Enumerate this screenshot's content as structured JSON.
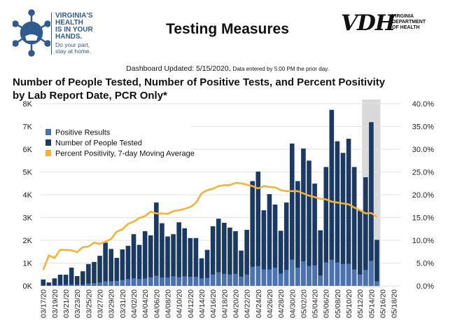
{
  "header": {
    "logo_left_lines": [
      "VIRGINIA'S",
      "HEALTH",
      "IS IN YOUR",
      "HANDS."
    ],
    "logo_left_sub": [
      "Do your part,",
      "stay at home."
    ],
    "title": "Testing Measures",
    "logo_right_mark": "VDH",
    "logo_right_sub": [
      "VIRGINIA",
      "DEPARTMENT",
      "OF HEALTH"
    ],
    "updated_label": "Dashboard Updated: 5/15/2020,",
    "updated_note": "Data entered by 5:00 PM the prior day."
  },
  "chart_data": {
    "type": "bar",
    "title": "Number of People Tested, Number of Positive Tests, and Percent Positivity by Lab Report Date, PCR Only*",
    "title_lines": [
      "Number of People Tested, Number of Positive Tests, and Percent Positivity",
      "by Lab Report Date, PCR Only*"
    ],
    "legend_position": "top-left",
    "grid": true,
    "colors": {
      "positive": "#4a72b0",
      "tested": "#1b3a63",
      "percent": "#f5b335",
      "highlight": "#d9d9d9"
    },
    "x_tick_labels": [
      "03/17/20",
      "03/19/20",
      "03/21/20",
      "03/23/20",
      "03/25/20",
      "03/27/20",
      "03/29/20",
      "03/31/20",
      "04/02/20",
      "04/04/20",
      "04/06/20",
      "04/08/20",
      "04/10/20",
      "04/12/20",
      "04/14/20",
      "04/16/20",
      "04/18/20",
      "04/20/20",
      "04/22/20",
      "04/24/20",
      "04/26/20",
      "04/28/20",
      "04/30/20",
      "05/02/20",
      "05/04/20",
      "05/06/20",
      "05/08/20",
      "05/10/20",
      "05/12/20",
      "05/14/20",
      "05/16/20",
      "05/18/20"
    ],
    "x_range": [
      "03/17/20",
      "05/18/20"
    ],
    "first_date": "03/17/20",
    "shaded_range": [
      "05/13/20",
      "05/15/20"
    ],
    "y_left": {
      "ticks": [
        "0K",
        "1K",
        "2K",
        "3K",
        "4K",
        "5K",
        "6K",
        "7K",
        "8K"
      ],
      "range": [
        0,
        8000
      ]
    },
    "y_right": {
      "ticks": [
        "0.0%",
        "5.0%",
        "10.0%",
        "15.0%",
        "20.0%",
        "25.0%",
        "30.0%",
        "35.0%",
        "40.0%"
      ],
      "range": [
        0,
        40
      ]
    },
    "series": [
      {
        "name": "Positive Results",
        "type": "bar",
        "values": [
          20,
          20,
          30,
          40,
          50,
          60,
          50,
          50,
          100,
          120,
          150,
          200,
          200,
          220,
          250,
          300,
          330,
          300,
          320,
          380,
          450,
          370,
          370,
          420,
          380,
          420,
          400,
          400,
          330,
          350,
          500,
          600,
          530,
          500,
          530,
          410,
          500,
          840,
          870,
          720,
          720,
          800,
          540,
          700,
          1150,
          800,
          1080,
          870,
          900,
          460,
          1030,
          1150,
          1030,
          960,
          970,
          720,
          500,
          700,
          1100,
          200
        ]
      },
      {
        "name": "Number of People Tested",
        "type": "bar",
        "values": [
          280,
          150,
          330,
          490,
          490,
          800,
          430,
          640,
          960,
          1050,
          1320,
          1900,
          1620,
          1230,
          1600,
          1760,
          2270,
          1800,
          2400,
          2220,
          3660,
          2750,
          2170,
          2270,
          2790,
          2530,
          2100,
          2100,
          1210,
          1580,
          2620,
          2950,
          2770,
          2560,
          2400,
          1550,
          2460,
          4600,
          5020,
          3320,
          4030,
          3570,
          2420,
          3660,
          6250,
          4600,
          6030,
          5500,
          4490,
          2440,
          5220,
          7730,
          6350,
          5840,
          6460,
          5220,
          3310,
          4770,
          7190,
          2020
        ]
      },
      {
        "name": "Percent Positivity, 7-day Moving Average",
        "type": "line",
        "axis": "right",
        "values": [
          3.5,
          6.7,
          6.1,
          7.9,
          7.9,
          7.8,
          7.4,
          8.5,
          8.6,
          9.5,
          9.2,
          9.7,
          10.3,
          11.9,
          12.4,
          13.6,
          14.1,
          14.9,
          15.3,
          16.3,
          15.9,
          15.9,
          15.8,
          16.4,
          16.6,
          16.9,
          17.3,
          18.2,
          20.3,
          21.0,
          21.3,
          21.9,
          22.1,
          22.1,
          22.6,
          22.5,
          22.2,
          21.9,
          21.4,
          21.9,
          21.7,
          21.6,
          21.0,
          20.8,
          20.8,
          20.8,
          20.3,
          19.8,
          19.5,
          19.1,
          19.0,
          18.5,
          18.3,
          18.1,
          17.9,
          17.2,
          16.6,
          15.9,
          16.0,
          15.1
        ]
      }
    ]
  }
}
